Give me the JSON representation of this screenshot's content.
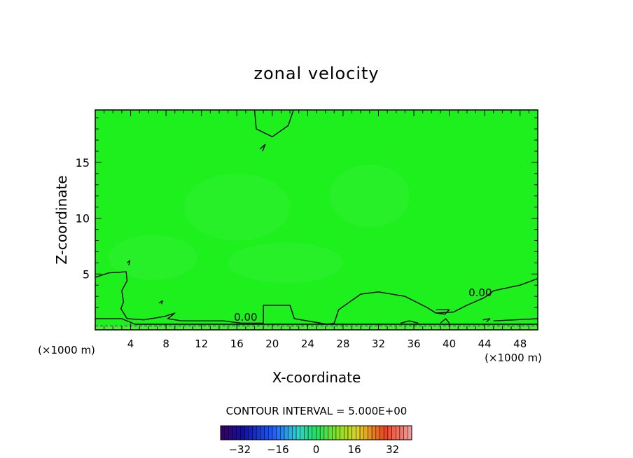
{
  "chart_data": {
    "type": "contour",
    "title": "zonal velocity",
    "xlabel": "X-coordinate",
    "ylabel": "Z-coordinate",
    "x_unit_left": "(×1000 m)",
    "x_unit_right": "(×1000 m)",
    "xlim": [
      0,
      50
    ],
    "ylim": [
      0,
      19.7
    ],
    "x_ticks": [
      4,
      8,
      12,
      16,
      20,
      24,
      28,
      32,
      36,
      40,
      44,
      48
    ],
    "y_ticks": [
      5,
      10,
      15
    ],
    "fill_color": "#1ef01e",
    "contour_labels": [
      {
        "text": "0.00",
        "x": 17.0,
        "z": 0.8
      },
      {
        "text": "0.00",
        "x": 43.5,
        "z": 3.0
      }
    ],
    "zero_contours": [
      [
        [
          0,
          4.7
        ],
        [
          1.5,
          5.1
        ],
        [
          3.5,
          5.2
        ],
        [
          3.6,
          4.4
        ],
        [
          3.0,
          3.5
        ],
        [
          3.2,
          2.5
        ],
        [
          2.9,
          1.9
        ],
        [
          3.6,
          1.0
        ],
        [
          5.5,
          0.9
        ],
        [
          7.8,
          1.2
        ],
        [
          9.0,
          1.5
        ],
        [
          8.2,
          1.0
        ],
        [
          9.8,
          0.8
        ],
        [
          14.5,
          0.8
        ],
        [
          16.5,
          0.6
        ],
        [
          19.0,
          0.6
        ],
        [
          19.0,
          2.2
        ],
        [
          22.0,
          2.2
        ],
        [
          22.5,
          1.0
        ],
        [
          26.2,
          0.5
        ],
        [
          27.0,
          0.6
        ],
        [
          27.5,
          1.8
        ],
        [
          30.0,
          3.2
        ],
        [
          32.0,
          3.4
        ],
        [
          35.0,
          3.0
        ],
        [
          37.5,
          2.0
        ],
        [
          38.5,
          1.5
        ],
        [
          40.5,
          1.6
        ],
        [
          42.0,
          2.2
        ],
        [
          44.0,
          2.9
        ],
        [
          45.0,
          3.5
        ],
        [
          48.0,
          4.0
        ],
        [
          50,
          4.6
        ]
      ],
      [
        [
          0,
          1.0
        ],
        [
          3.0,
          1.0
        ],
        [
          4.5,
          0.5
        ],
        [
          50,
          0.5
        ]
      ],
      [
        [
          0,
          0.35
        ],
        [
          50,
          0.35
        ]
      ],
      [
        [
          38.5,
          1.8
        ],
        [
          40.0,
          1.8
        ],
        [
          39.5,
          1.4
        ],
        [
          38.6,
          1.5
        ]
      ],
      [
        [
          18.0,
          19.7
        ],
        [
          18.2,
          18.0
        ],
        [
          20.0,
          17.3
        ],
        [
          21.8,
          18.3
        ],
        [
          22.4,
          19.7
        ]
      ],
      [
        [
          18.6,
          16.2
        ],
        [
          19.2,
          16.6
        ],
        [
          18.9,
          16.0
        ]
      ],
      [
        [
          3.6,
          6.0
        ],
        [
          3.9,
          6.2
        ],
        [
          3.8,
          5.8
        ]
      ],
      [
        [
          7.2,
          2.4
        ],
        [
          7.6,
          2.6
        ],
        [
          7.5,
          2.3
        ]
      ],
      [
        [
          34.5,
          0.6
        ],
        [
          35.5,
          0.8
        ],
        [
          36.5,
          0.6
        ]
      ],
      [
        [
          39.0,
          0.6
        ],
        [
          39.6,
          1.0
        ],
        [
          40.0,
          0.6
        ]
      ],
      [
        [
          43.8,
          0.9
        ],
        [
          44.6,
          1.0
        ],
        [
          44.2,
          0.7
        ]
      ],
      [
        [
          45.0,
          0.8
        ],
        [
          50,
          1.0
        ]
      ]
    ],
    "lighter_patches": [
      {
        "x": 6.5,
        "z": 6.5,
        "rx": 5.0,
        "rz": 2.0
      },
      {
        "x": 21.5,
        "z": 6.0,
        "rx": 6.5,
        "rz": 1.8
      },
      {
        "x": 31.0,
        "z": 12.0,
        "rx": 4.5,
        "rz": 2.8
      },
      {
        "x": 16.0,
        "z": 11.0,
        "rx": 6.0,
        "rz": 3.0
      }
    ],
    "contour_interval_text": "CONTOUR INTERVAL = 5.000E+00",
    "colorbar": {
      "range": [
        -40,
        40
      ],
      "ticks": [
        -32,
        -16,
        0,
        16,
        32
      ],
      "segments": 48
    }
  }
}
